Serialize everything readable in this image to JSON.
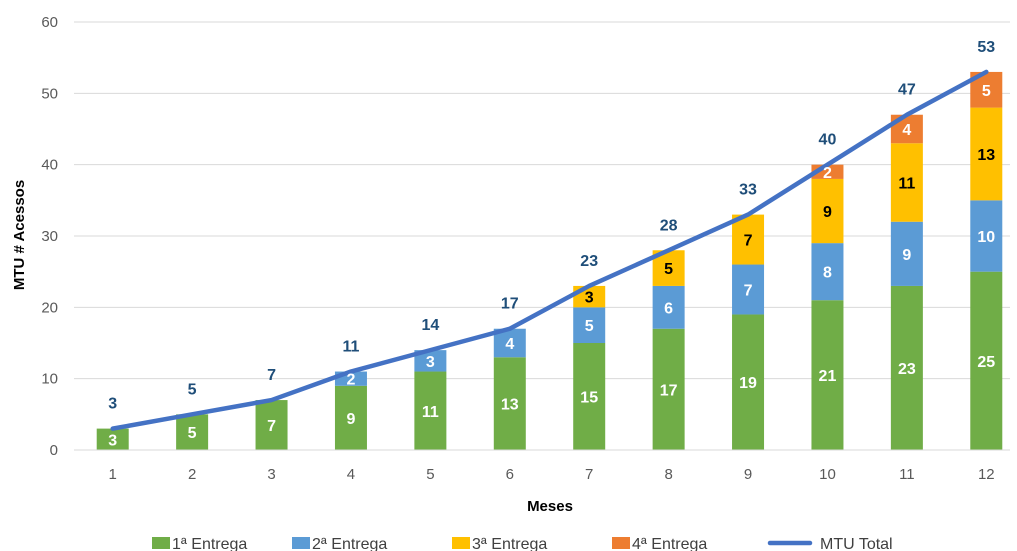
{
  "chart_data": {
    "type": "bar",
    "stacked": true,
    "categories": [
      "1",
      "2",
      "3",
      "4",
      "5",
      "6",
      "7",
      "8",
      "9",
      "10",
      "11",
      "12"
    ],
    "xlabel": "Meses",
    "ylabel": "MTU # Acessos",
    "ylim": [
      0,
      60
    ],
    "yticks": [
      0,
      10,
      20,
      30,
      40,
      50,
      60
    ],
    "grid": true,
    "legend_position": "bottom",
    "series": [
      {
        "name": "1ª Entrega",
        "type": "bar",
        "color": "#70ad47",
        "label_color": "#ffffff",
        "values": [
          3,
          5,
          7,
          9,
          11,
          13,
          15,
          17,
          19,
          21,
          23,
          25
        ]
      },
      {
        "name": "2ª Entrega",
        "type": "bar",
        "color": "#5b9bd5",
        "label_color": "#ffffff",
        "values": [
          0,
          0,
          0,
          2,
          3,
          4,
          5,
          6,
          7,
          8,
          9,
          10
        ]
      },
      {
        "name": "3ª Entrega",
        "type": "bar",
        "color": "#ffc000",
        "label_color": "#000000",
        "values": [
          0,
          0,
          0,
          0,
          0,
          0,
          3,
          5,
          7,
          9,
          11,
          13
        ]
      },
      {
        "name": "4ª Entrega",
        "type": "bar",
        "color": "#ed7d31",
        "label_color": "#ffffff",
        "values": [
          0,
          0,
          0,
          0,
          0,
          0,
          0,
          0,
          0,
          2,
          4,
          5
        ]
      },
      {
        "name": "MTU Total",
        "type": "line",
        "color": "#4472c4",
        "label_color": "#1f4e79",
        "values": [
          3,
          5,
          7,
          11,
          14,
          17,
          23,
          28,
          33,
          40,
          47,
          53
        ]
      }
    ]
  }
}
